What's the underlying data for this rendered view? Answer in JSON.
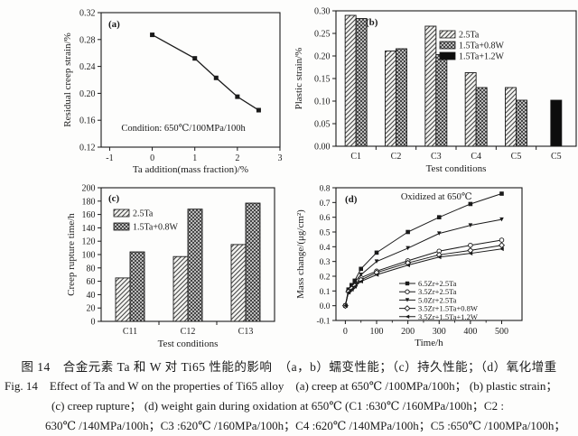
{
  "caption": {
    "chinese": "图 14　合金元素 Ta 和 W 对 Ti65 性能的影响　（a，b）蠕变性能；（c）持久性能；（d）氧化增重",
    "english_line1": "Fig. 14　Effect of Ta and W on the properties of Ti65 alloy　(a) creep at 650℃ /100MPa/100h； (b) plastic strain；",
    "english_line2": "(c) creep rupture； (d) weight gain during oxidation at 650℃ (C1 :630℃ /160MPa/100h；C2 :",
    "english_line3": "630℃ /140MPa/100h；C3 :620℃ /160MPa/100h；C4 :620℃ /140MPa/100h；C5 :650℃ /100MPa/100h；"
  },
  "colors": {
    "ink": "#1a1a1a",
    "solid_bar": "#0d0d0d",
    "background": "#fdfdfc"
  },
  "chart_data": [
    {
      "id": "a",
      "type": "line",
      "panel_label": "(a)",
      "xlabel": "Ta addition(mass fraction)/%",
      "ylabel": "Residual creep strain/%",
      "xlim": [
        -1.2,
        3
      ],
      "ylim": [
        0.12,
        0.32
      ],
      "xticks": {
        "values": [
          -1,
          0,
          1,
          2,
          3
        ],
        "labels": [
          "-1",
          "0",
          "1",
          "2",
          "3"
        ]
      },
      "yticks": {
        "values": [
          0.12,
          0.16,
          0.2,
          0.24,
          0.28,
          0.32
        ],
        "labels": [
          "0.12",
          "0.16",
          "0.20",
          "0.24",
          "0.28",
          "0.32"
        ]
      },
      "grid": false,
      "legend_position": "none",
      "annotation": {
        "text": "Condition: 650℃/100MPa/100h",
        "fx": 0.46,
        "fy": 0.88
      },
      "series": [
        {
          "name": "",
          "marker": "square-filled",
          "x": [
            0,
            1,
            1.5,
            2,
            2.5
          ],
          "y": [
            0.287,
            0.252,
            0.223,
            0.195,
            0.175
          ]
        }
      ]
    },
    {
      "id": "b",
      "type": "bar",
      "panel_label": "(b)",
      "xlabel": "Test conditions",
      "ylabel": "Plastic strain/%",
      "categories": [
        "C1",
        "C2",
        "C3",
        "C4",
        "C5",
        "C5"
      ],
      "ylim": [
        0,
        0.3
      ],
      "yticks": {
        "values": [
          0,
          0.05,
          0.1,
          0.15,
          0.2,
          0.25,
          0.3
        ],
        "labels": [
          "0.00",
          "0.05",
          "0.10",
          "0.15",
          "0.20",
          "0.25",
          "0.30"
        ]
      },
      "grid": false,
      "legend_position": "upper-right",
      "series": [
        {
          "name": "2.5Ta",
          "pattern": "hatch",
          "values": [
            0.29,
            0.211,
            0.266,
            0.163,
            0.13,
            null
          ]
        },
        {
          "name": "1.5Ta+0.8W",
          "pattern": "cross",
          "values": [
            0.283,
            0.216,
            0.203,
            0.13,
            0.102,
            null
          ]
        },
        {
          "name": "1.5Ta+1.2W",
          "pattern": "solid",
          "values": [
            null,
            null,
            null,
            null,
            null,
            0.102
          ]
        }
      ]
    },
    {
      "id": "c",
      "type": "bar",
      "panel_label": "(c)",
      "xlabel": "Test conditions",
      "ylabel": "Creep rupture time/h",
      "categories": [
        "C11",
        "C12",
        "C13"
      ],
      "ylim": [
        0,
        200
      ],
      "yticks": {
        "values": [
          0,
          20,
          40,
          60,
          80,
          100,
          120,
          140,
          160,
          180,
          200
        ],
        "labels": [
          "0",
          "20",
          "40",
          "60",
          "80",
          "100",
          "120",
          "140",
          "160",
          "180",
          "200"
        ]
      },
      "grid": false,
      "legend_position": "upper-left",
      "series": [
        {
          "name": "2.5Ta",
          "pattern": "hatch",
          "values": [
            65,
            97,
            115
          ]
        },
        {
          "name": "1.5Ta+0.8W",
          "pattern": "cross",
          "values": [
            104,
            168,
            177
          ]
        }
      ]
    },
    {
      "id": "d",
      "type": "line",
      "panel_label": "(d)",
      "xlabel": "Time/h",
      "ylabel": "Mass change/(μg/cm²)",
      "xlim": [
        -30,
        565
      ],
      "ylim": [
        -0.1,
        0.8
      ],
      "xticks": {
        "values": [
          0,
          100,
          200,
          300,
          400,
          500
        ],
        "labels": [
          "0",
          "100",
          "200",
          "300",
          "400",
          "500"
        ]
      },
      "xminor": [
        50,
        150,
        250,
        350,
        450
      ],
      "yticks": {
        "values": [
          -0.1,
          0.0,
          0.1,
          0.2,
          0.3,
          0.4,
          0.5,
          0.6,
          0.7,
          0.8
        ],
        "labels": [
          "-0.1",
          "0.0",
          "0.1",
          "0.2",
          "0.3",
          "0.4",
          "0.5",
          "0.6",
          "0.7",
          "0.8"
        ]
      },
      "grid": false,
      "legend_position": "lower-right",
      "annotation": {
        "text": "Oxidized at 650℃",
        "fx": 0.54,
        "fy": 0.09
      },
      "x": [
        0,
        10,
        20,
        30,
        50,
        100,
        200,
        300,
        400,
        500
      ],
      "series": [
        {
          "name": "6.5Zr+2.5Ta",
          "marker": "square-filled",
          "y": [
            0,
            0.11,
            0.14,
            0.17,
            0.25,
            0.36,
            0.5,
            0.6,
            0.69,
            0.76
          ]
        },
        {
          "name": "3.5Zr+2.5Ta",
          "marker": "circle-open",
          "y": [
            0,
            0.1,
            0.12,
            0.14,
            0.19,
            0.235,
            0.305,
            0.37,
            0.41,
            0.445
          ]
        },
        {
          "name": "5.0Zr+2.5Ta",
          "marker": "triangle-down-filled",
          "y": [
            0,
            0.105,
            0.13,
            0.16,
            0.21,
            0.3,
            0.39,
            0.49,
            0.545,
            0.585
          ]
        },
        {
          "name": "3.5Zr+1.5Ta+0.8W",
          "marker": "diamond-open",
          "y": [
            0,
            0.095,
            0.115,
            0.135,
            0.175,
            0.225,
            0.29,
            0.345,
            0.375,
            0.41
          ]
        },
        {
          "name": "3.5Zr+1.5Ta+1.2W",
          "marker": "triangle-left-filled",
          "y": [
            0,
            0.09,
            0.11,
            0.13,
            0.165,
            0.21,
            0.275,
            0.33,
            0.355,
            0.385
          ]
        }
      ]
    }
  ]
}
